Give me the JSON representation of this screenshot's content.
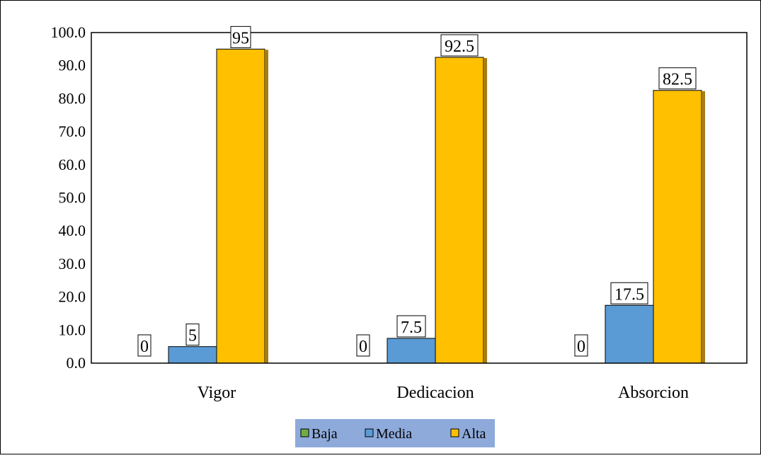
{
  "colors": {
    "background": "#ffffff",
    "frame": "#000000",
    "legend_bg": "#8eaadb",
    "baja": "#70ad47",
    "media": "#5b9bd5",
    "alta": "#ffc000",
    "alta_side": "#a57d14",
    "media_side": "#2e5f8f"
  },
  "chart_data": {
    "type": "bar",
    "categories": [
      "Vigor",
      "Dedicacion",
      "Absorcion"
    ],
    "series": [
      {
        "name": "Baja",
        "values": [
          0,
          0,
          0
        ],
        "labels": [
          "0",
          "0",
          "0"
        ]
      },
      {
        "name": "Media",
        "values": [
          5,
          7.5,
          17.5
        ],
        "labels": [
          "5",
          "7.5",
          "17.5"
        ]
      },
      {
        "name": "Alta",
        "values": [
          95,
          92.5,
          82.5
        ],
        "labels": [
          "95",
          "92.5",
          "82.5"
        ]
      }
    ],
    "yticks": [
      "0.0",
      "10.0",
      "20.0",
      "30.0",
      "40.0",
      "50.0",
      "60.0",
      "70.0",
      "80.0",
      "90.0",
      "100.0"
    ],
    "ylim": [
      0,
      100
    ],
    "grid": false,
    "legend_position": "bottom",
    "title": "",
    "xlabel": "",
    "ylabel": ""
  }
}
